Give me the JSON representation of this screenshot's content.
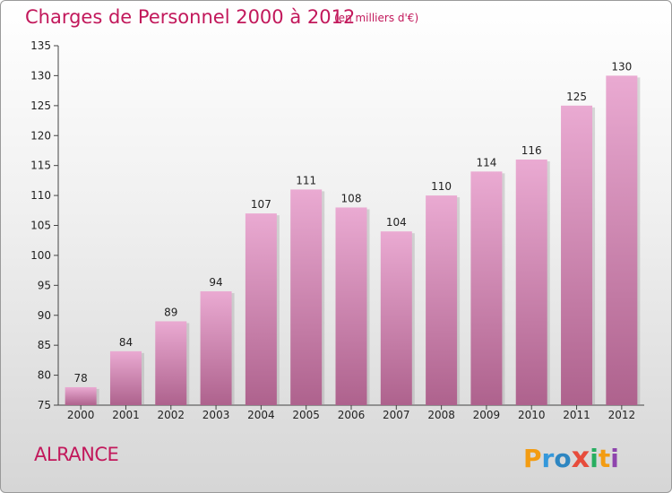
{
  "header": {
    "title": "Charges de Personnel 2000 à 2012",
    "subtitle": "(en milliers d'€)"
  },
  "footer": {
    "commune": "ALRANCE",
    "logo_letters": [
      "P",
      "r",
      "o",
      "x",
      "i",
      "t",
      "i"
    ],
    "logo_colors": [
      "#f39c12",
      "#3498db",
      "#2e86c1",
      "#e74c3c",
      "#27ae60",
      "#f39c12",
      "#8e44ad"
    ]
  },
  "colors": {
    "accent": "#c2185b",
    "bar_top": "#e8a6cf",
    "bar_bottom": "#b0648f"
  },
  "chart_data": {
    "type": "bar",
    "categories": [
      "2000",
      "2001",
      "2002",
      "2003",
      "2004",
      "2005",
      "2006",
      "2007",
      "2008",
      "2009",
      "2010",
      "2011",
      "2012"
    ],
    "values": [
      78,
      84,
      89,
      94,
      107,
      111,
      108,
      104,
      110,
      114,
      116,
      125,
      130
    ],
    "title": "Charges de Personnel 2000 à 2012",
    "xlabel": "",
    "ylabel": "",
    "ylim": [
      75,
      135
    ],
    "yticks": [
      75,
      80,
      85,
      90,
      95,
      100,
      105,
      110,
      115,
      120,
      125,
      130,
      135
    ],
    "grid": false
  }
}
